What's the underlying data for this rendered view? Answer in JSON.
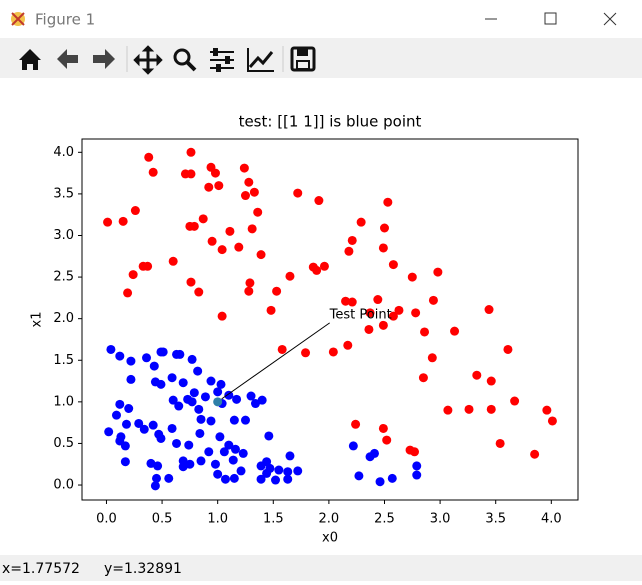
{
  "window": {
    "title": "Figure 1"
  },
  "status_bar": {
    "x": "x=1.77572",
    "y": "y=1.32891"
  },
  "chart_data": {
    "type": "scatter",
    "title": "test: [[1 1]] is blue point",
    "x_label": "x0",
    "y_label": "x1",
    "xlim": [
      -0.22,
      4.24
    ],
    "ylim": [
      -0.18,
      4.16
    ],
    "xticks": [
      {
        "value": 0,
        "label": "0.0"
      },
      {
        "value": 0.5,
        "label": "0.5"
      },
      {
        "value": 1,
        "label": "1.0"
      },
      {
        "value": 1.5,
        "label": "1.5"
      },
      {
        "value": 2,
        "label": "2.0"
      },
      {
        "value": 2.5,
        "label": "2.5"
      },
      {
        "value": 3,
        "label": "3.0"
      },
      {
        "value": 3.5,
        "label": "3.5"
      },
      {
        "value": 4,
        "label": "4.0"
      }
    ],
    "yticks": [
      {
        "value": 0,
        "label": "0.0"
      },
      {
        "value": 0.5,
        "label": "0.5"
      },
      {
        "value": 1,
        "label": "1.0"
      },
      {
        "value": 1.5,
        "label": "1.5"
      },
      {
        "value": 2,
        "label": "2.0"
      },
      {
        "value": 2.5,
        "label": "2.5"
      },
      {
        "value": 3,
        "label": "3.0"
      },
      {
        "value": 3.5,
        "label": "3.5"
      },
      {
        "value": 4,
        "label": "4.0"
      }
    ],
    "series": [
      {
        "color": "#ff0000",
        "x": [
          0.01,
          0.15,
          0.26,
          0.38,
          0.42,
          0.33,
          0.37,
          0.24,
          0.19,
          0.6,
          0.76,
          0.71,
          0.76,
          0.94,
          0.92,
          1.01,
          0.98,
          1.24,
          1.28,
          1.33,
          1.25,
          1.36,
          0.75,
          0.79,
          0.87,
          0.95,
          1.04,
          1.19,
          1.11,
          1.31,
          1.39,
          1.29,
          1.28,
          1.53,
          1.48,
          1.65,
          1.72,
          1.91,
          1.86,
          1.89,
          1.96,
          2.18,
          2.21,
          2.29,
          2.5,
          2.53,
          2.49,
          2.58,
          2.75,
          2.98,
          2.78,
          2.94,
          3.13,
          2.93,
          2.86,
          2.85,
          3.07,
          3.33,
          3.46,
          3.26,
          3.46,
          3.44,
          3.61,
          3.67,
          3.54,
          3.85,
          3.96,
          4.01,
          2.15,
          2.21,
          2.36,
          2.44,
          2.37,
          2.04,
          1.79,
          1.04,
          1.58,
          0.83,
          0.76,
          2.17,
          2.49,
          2.58,
          2.63,
          2.24,
          2.49,
          2.52,
          2.73,
          2.77
        ],
        "y": [
          3.16,
          3.17,
          3.3,
          3.94,
          3.76,
          2.63,
          2.63,
          2.53,
          2.31,
          2.69,
          4.0,
          3.74,
          3.74,
          3.82,
          3.58,
          3.6,
          3.75,
          3.81,
          3.64,
          3.52,
          3.48,
          3.28,
          3.11,
          3.11,
          3.2,
          2.93,
          2.83,
          2.86,
          3.05,
          3.08,
          2.77,
          2.43,
          2.33,
          2.33,
          2.1,
          2.51,
          3.51,
          3.42,
          2.62,
          2.58,
          2.63,
          2.81,
          2.94,
          3.16,
          3.09,
          3.4,
          2.85,
          2.65,
          2.5,
          2.56,
          2.07,
          2.22,
          1.85,
          1.53,
          1.84,
          1.29,
          0.9,
          1.32,
          1.25,
          0.91,
          0.91,
          2.11,
          1.63,
          1.01,
          0.5,
          0.37,
          0.9,
          0.77,
          2.21,
          2.2,
          1.87,
          2.23,
          2.07,
          1.6,
          1.59,
          2.03,
          1.63,
          2.32,
          2.44,
          1.68,
          1.92,
          2.03,
          2.1,
          0.73,
          0.68,
          0.54,
          0.42,
          0.4
        ]
      },
      {
        "color": "#0000ff",
        "x": [
          0.04,
          0.12,
          0.22,
          0.36,
          0.49,
          0.51,
          0.63,
          0.66,
          0.77,
          0.82,
          0.43,
          0.44,
          0.49,
          0.22,
          0.59,
          0.69,
          0.94,
          1.03,
          0.6,
          0.65,
          0.73,
          0.77,
          0.79,
          0.89,
          0.83,
          1.0,
          1.04,
          1.1,
          1.17,
          1.3,
          1.34,
          1.4,
          1.15,
          1.25,
          0.12,
          0.2,
          0.09,
          0.18,
          0.29,
          0.34,
          0.42,
          0.47,
          0.02,
          0.13,
          0.12,
          0.17,
          0.17,
          0.49,
          0.59,
          0.63,
          0.74,
          0.84,
          0.85,
          0.94,
          1.02,
          1.1,
          1.16,
          1.23,
          0.92,
          1.06,
          1.14,
          1.21,
          1.39,
          1.44,
          1.44,
          1.47,
          1.55,
          1.63,
          1.72,
          1.46,
          1.65,
          1.39,
          1.52,
          1.63,
          0.4,
          0.45,
          0.44,
          0.56,
          0.69,
          0.69,
          0.75,
          0.85,
          0.98,
          1.0,
          1.07,
          1.15,
          0.46,
          2.22,
          2.27,
          2.37,
          2.41,
          2.46,
          2.57,
          2.79,
          2.79
        ],
        "y": [
          1.63,
          1.55,
          1.49,
          1.53,
          1.6,
          1.6,
          1.57,
          1.57,
          1.51,
          1.37,
          1.43,
          1.24,
          1.21,
          1.27,
          1.29,
          1.23,
          1.25,
          1.21,
          1.02,
          0.95,
          1.03,
          1.0,
          1.11,
          1.06,
          0.91,
          1.12,
          0.98,
          1.08,
          1.03,
          1.07,
          0.98,
          1.02,
          0.78,
          0.78,
          0.97,
          0.92,
          0.84,
          0.73,
          0.74,
          0.67,
          0.72,
          0.61,
          0.64,
          0.58,
          0.53,
          0.47,
          0.28,
          0.56,
          0.68,
          0.5,
          0.48,
          0.62,
          0.79,
          0.77,
          0.58,
          0.48,
          0.43,
          0.38,
          0.4,
          0.4,
          0.3,
          0.17,
          0.23,
          0.28,
          0.14,
          0.2,
          0.18,
          0.16,
          0.17,
          0.59,
          0.35,
          0.07,
          0.06,
          0.07,
          0.26,
          0.08,
          -0.01,
          0.08,
          0.22,
          0.29,
          0.25,
          0.29,
          0.25,
          0.13,
          0.07,
          0.08,
          0.23,
          0.47,
          0.11,
          0.34,
          0.38,
          0.04,
          0.08,
          0.23,
          0.12
        ]
      },
      {
        "color": "#2e7fa8",
        "x": [
          1
        ],
        "y": [
          1
        ]
      }
    ],
    "annotation": {
      "text": "Test Point",
      "x": 1,
      "y": 1
    }
  }
}
